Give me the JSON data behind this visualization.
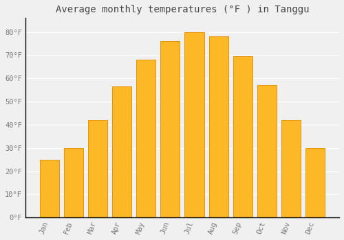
{
  "title": "Average monthly temperatures (°F ) in Tanggu",
  "months": [
    "Jan",
    "Feb",
    "Mar",
    "Apr",
    "May",
    "Jun",
    "Jul",
    "Aug",
    "Sep",
    "Oct",
    "Nov",
    "Dec"
  ],
  "values": [
    25,
    30,
    42,
    56.5,
    68,
    76,
    80,
    78,
    69.5,
    57,
    42,
    30
  ],
  "bar_color": "#FDB827",
  "bar_edge_color": "#E8940A",
  "background_color": "#F0F0F0",
  "grid_color": "#FFFFFF",
  "ylim": [
    0,
    86
  ],
  "yticks": [
    0,
    10,
    20,
    30,
    40,
    50,
    60,
    70,
    80
  ],
  "ytick_labels": [
    "0°F",
    "10°F",
    "20°F",
    "30°F",
    "40°F",
    "50°F",
    "60°F",
    "70°F",
    "80°F"
  ],
  "title_fontsize": 10,
  "tick_fontsize": 7.5,
  "title_color": "#444444",
  "tick_color": "#777777",
  "font_family": "monospace",
  "bar_width": 0.8
}
